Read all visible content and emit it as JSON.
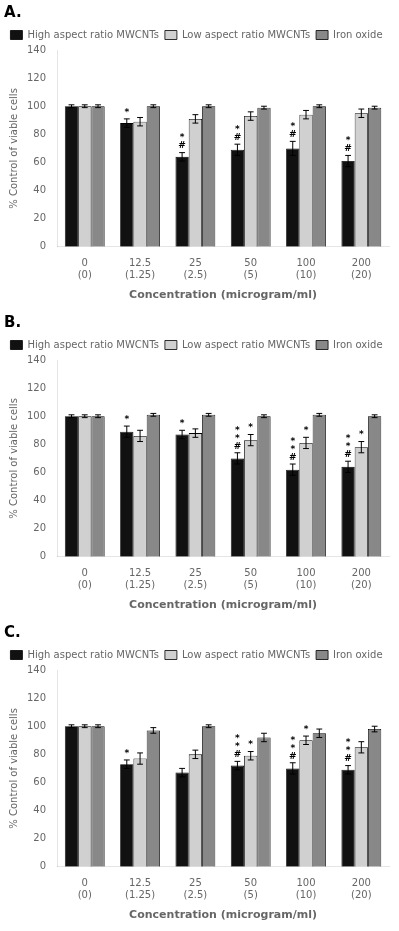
{
  "chart_data": [
    {
      "type": "bar",
      "title": "A.",
      "xlabel": "Concentration (microgram/ml)",
      "ylabel": "% Control of viable cells",
      "categories": [
        "0\n(0)",
        "12.5\n(1.25)",
        "25\n(2.5)",
        "50\n(5)",
        "100\n(10)",
        "200\n(20)"
      ],
      "series": [
        {
          "name": "High aspect ratio MWCNTs",
          "color": "#111111",
          "values": [
            100,
            88,
            64,
            69,
            70,
            61
          ],
          "errors": [
            1,
            3,
            3,
            4,
            5,
            4
          ],
          "annotations": [
            null,
            [
              "*"
            ],
            [
              "#",
              "*"
            ],
            [
              "#",
              "*"
            ],
            [
              "#",
              "*"
            ],
            [
              "#",
              "*"
            ]
          ]
        },
        {
          "name": "Low aspect ratio MWCNTs",
          "color": "#d0d0d0",
          "values": [
            100,
            89,
            91,
            93,
            94,
            95
          ],
          "errors": [
            1,
            3,
            3,
            3,
            3,
            3
          ],
          "annotations": [
            null,
            null,
            null,
            null,
            null,
            null
          ]
        },
        {
          "name": "Iron oxide",
          "color": "#888888",
          "values": [
            100,
            100,
            100,
            99,
            100,
            99
          ],
          "errors": [
            1,
            1,
            1,
            1,
            1,
            1
          ],
          "annotations": [
            null,
            null,
            null,
            null,
            null,
            null
          ]
        }
      ],
      "ylim": [
        0,
        140
      ],
      "yticks": [
        0,
        20,
        40,
        60,
        80,
        100,
        120,
        140
      ],
      "grid": false,
      "legend": "top"
    },
    {
      "type": "bar",
      "title": "B.",
      "xlabel": "Concentration (microgram/ml)",
      "ylabel": "% Control of viable cells",
      "categories": [
        "0\n(0)",
        "12.5\n(1.25)",
        "25\n(2.5)",
        "50\n(5)",
        "100\n(10)",
        "200\n(20)"
      ],
      "series": [
        {
          "name": "High aspect ratio MWCNTs",
          "color": "#111111",
          "values": [
            100,
            89,
            87,
            70,
            62,
            64
          ],
          "errors": [
            1,
            4,
            3,
            4,
            4,
            4
          ],
          "annotations": [
            null,
            [
              "*"
            ],
            [
              "*"
            ],
            [
              "#",
              "*",
              "*"
            ],
            [
              "#",
              "*",
              "*"
            ],
            [
              "#",
              "*",
              "*"
            ]
          ]
        },
        {
          "name": "Low aspect ratio MWCNTs",
          "color": "#d0d0d0",
          "values": [
            100,
            86,
            88,
            83,
            81,
            78
          ],
          "errors": [
            1,
            4,
            3,
            4,
            4,
            4
          ],
          "annotations": [
            null,
            null,
            null,
            [
              "*"
            ],
            [
              "*"
            ],
            [
              "*"
            ]
          ]
        },
        {
          "name": "Iron oxide",
          "color": "#888888",
          "values": [
            100,
            101,
            101,
            100,
            101,
            100
          ],
          "errors": [
            1,
            1,
            1,
            1,
            1,
            1
          ],
          "annotations": [
            null,
            null,
            null,
            null,
            null,
            null
          ]
        }
      ],
      "ylim": [
        0,
        140
      ],
      "yticks": [
        0,
        20,
        40,
        60,
        80,
        100,
        120,
        140
      ],
      "grid": false,
      "legend": "top"
    },
    {
      "type": "bar",
      "title": "C.",
      "xlabel": "Concentration (microgram/ml)",
      "ylabel": "% Control of viable cells",
      "categories": [
        "0\n(0)",
        "12.5\n(1.25)",
        "25\n(2.5)",
        "50\n(5)",
        "100\n(10)",
        "200\n(20)"
      ],
      "series": [
        {
          "name": "High aspect ratio MWCNTs",
          "color": "#111111",
          "values": [
            100,
            73,
            67,
            72,
            70,
            69
          ],
          "errors": [
            1,
            3,
            3,
            3,
            4,
            3
          ],
          "annotations": [
            null,
            [
              "*"
            ],
            null,
            [
              "#",
              "*",
              "*"
            ],
            [
              "#",
              "*",
              "*"
            ],
            [
              "#",
              "*",
              "*"
            ]
          ]
        },
        {
          "name": "Low aspect ratio MWCNTs",
          "color": "#d0d0d0",
          "values": [
            100,
            77,
            80,
            79,
            90,
            85
          ],
          "errors": [
            1,
            4,
            3,
            3,
            3,
            4
          ],
          "annotations": [
            null,
            null,
            null,
            [
              "*"
            ],
            [
              "*"
            ],
            null
          ]
        },
        {
          "name": "Iron oxide",
          "color": "#888888",
          "values": [
            100,
            97,
            100,
            92,
            95,
            98
          ],
          "errors": [
            1,
            2,
            1,
            3,
            3,
            2
          ],
          "annotations": [
            null,
            null,
            null,
            null,
            null,
            null
          ]
        }
      ],
      "ylim": [
        0,
        140
      ],
      "yticks": [
        0,
        20,
        40,
        60,
        80,
        100,
        120,
        140
      ],
      "grid": false,
      "legend": "top"
    }
  ]
}
